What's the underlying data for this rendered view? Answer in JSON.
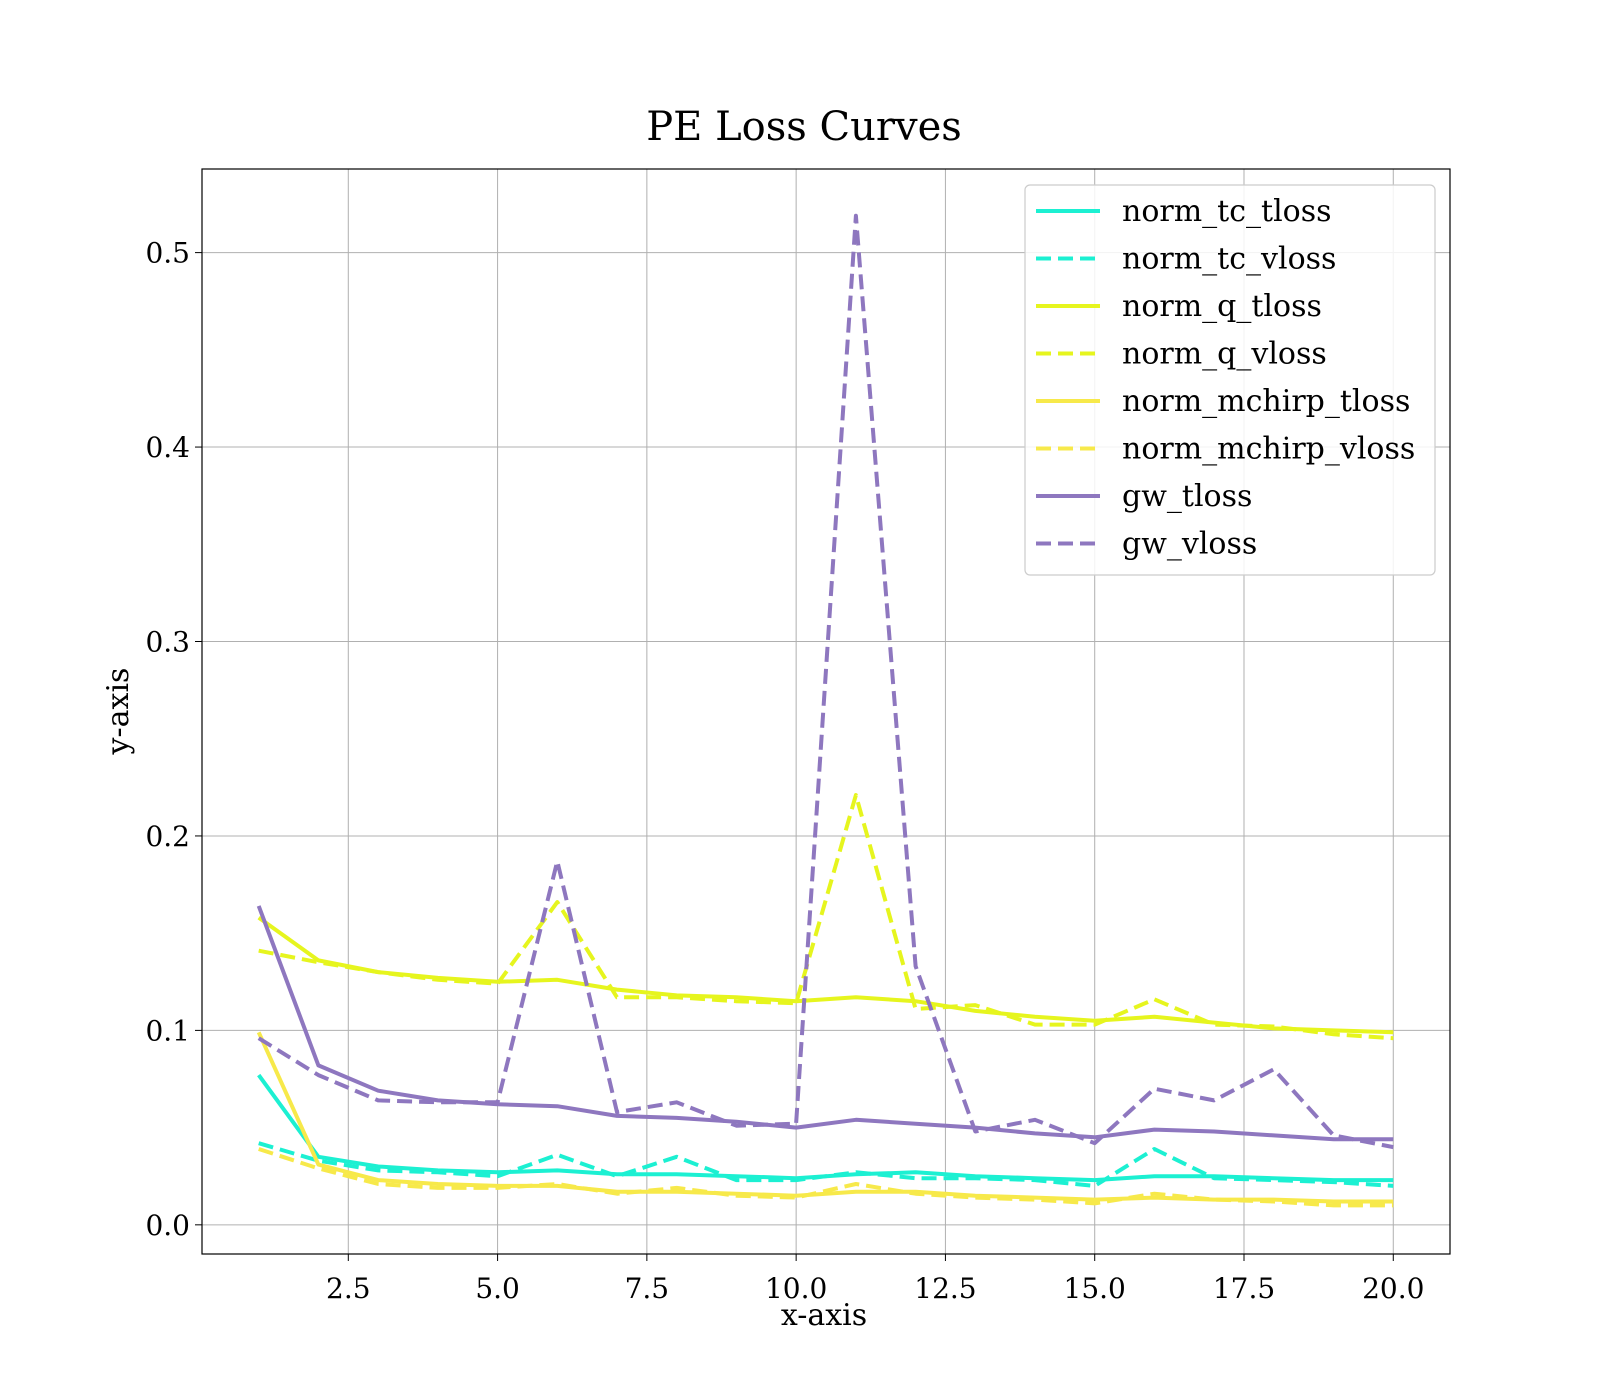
{
  "chart_data": {
    "type": "line",
    "title": "PE Loss Curves",
    "xlabel": "x-axis",
    "ylabel": "y-axis",
    "xlim": [
      0.05,
      20.95
    ],
    "ylim": [
      -0.015,
      0.543
    ],
    "xticks": [
      2.5,
      5.0,
      7.5,
      10.0,
      12.5,
      15.0,
      17.5,
      20.0
    ],
    "xtick_labels": [
      "2.5",
      "5.0",
      "7.5",
      "10.0",
      "12.5",
      "15.0",
      "17.5",
      "20.0"
    ],
    "yticks": [
      0.0,
      0.1,
      0.2,
      0.3,
      0.4,
      0.5
    ],
    "ytick_labels": [
      "0.0",
      "0.1",
      "0.2",
      "0.3",
      "0.4",
      "0.5"
    ],
    "grid": true,
    "legend_position": "top-right",
    "x": [
      1,
      2,
      3,
      4,
      5,
      6,
      7,
      8,
      9,
      10,
      11,
      12,
      13,
      14,
      15,
      16,
      17,
      18,
      19,
      20
    ],
    "series": [
      {
        "name": "norm_tc_tloss",
        "color": "#1cf0d2",
        "style": "solid",
        "values": [
          0.077,
          0.035,
          0.03,
          0.028,
          0.027,
          0.028,
          0.026,
          0.026,
          0.025,
          0.024,
          0.026,
          0.027,
          0.025,
          0.024,
          0.023,
          0.025,
          0.025,
          0.024,
          0.023,
          0.023
        ]
      },
      {
        "name": "norm_tc_vloss",
        "color": "#1cf0d2",
        "style": "dashed",
        "values": [
          0.042,
          0.033,
          0.028,
          0.027,
          0.025,
          0.036,
          0.025,
          0.035,
          0.023,
          0.023,
          0.027,
          0.024,
          0.024,
          0.023,
          0.02,
          0.039,
          0.024,
          0.023,
          0.022,
          0.02
        ]
      },
      {
        "name": "norm_q_tloss",
        "color": "#e6f51e",
        "style": "solid",
        "values": [
          0.158,
          0.136,
          0.13,
          0.127,
          0.125,
          0.126,
          0.121,
          0.118,
          0.117,
          0.115,
          0.117,
          0.115,
          0.11,
          0.107,
          0.105,
          0.107,
          0.104,
          0.101,
          0.1,
          0.099
        ]
      },
      {
        "name": "norm_q_vloss",
        "color": "#e6f51e",
        "style": "dashed",
        "values": [
          0.141,
          0.135,
          0.13,
          0.126,
          0.124,
          0.166,
          0.117,
          0.117,
          0.115,
          0.114,
          0.221,
          0.111,
          0.113,
          0.103,
          0.103,
          0.116,
          0.103,
          0.102,
          0.098,
          0.096
        ]
      },
      {
        "name": "norm_mchirp_tloss",
        "color": "#f7e94a",
        "style": "solid",
        "values": [
          0.099,
          0.031,
          0.023,
          0.021,
          0.02,
          0.02,
          0.017,
          0.017,
          0.016,
          0.015,
          0.017,
          0.017,
          0.015,
          0.014,
          0.013,
          0.014,
          0.013,
          0.013,
          0.012,
          0.012
        ]
      },
      {
        "name": "norm_mchirp_vloss",
        "color": "#f7e94a",
        "style": "dashed",
        "values": [
          0.039,
          0.029,
          0.021,
          0.019,
          0.019,
          0.021,
          0.016,
          0.019,
          0.015,
          0.014,
          0.021,
          0.016,
          0.014,
          0.013,
          0.011,
          0.016,
          0.013,
          0.012,
          0.01,
          0.01
        ]
      },
      {
        "name": "gw_tloss",
        "color": "#8e77bf",
        "style": "solid",
        "values": [
          0.164,
          0.082,
          0.069,
          0.064,
          0.062,
          0.061,
          0.056,
          0.055,
          0.053,
          0.05,
          0.054,
          0.052,
          0.05,
          0.047,
          0.045,
          0.049,
          0.048,
          0.046,
          0.044,
          0.044
        ]
      },
      {
        "name": "gw_vloss",
        "color": "#8e77bf",
        "style": "dashed",
        "values": [
          0.096,
          0.077,
          0.064,
          0.063,
          0.063,
          0.187,
          0.058,
          0.063,
          0.051,
          0.052,
          0.519,
          0.133,
          0.048,
          0.054,
          0.042,
          0.07,
          0.064,
          0.08,
          0.046,
          0.04
        ]
      }
    ]
  }
}
